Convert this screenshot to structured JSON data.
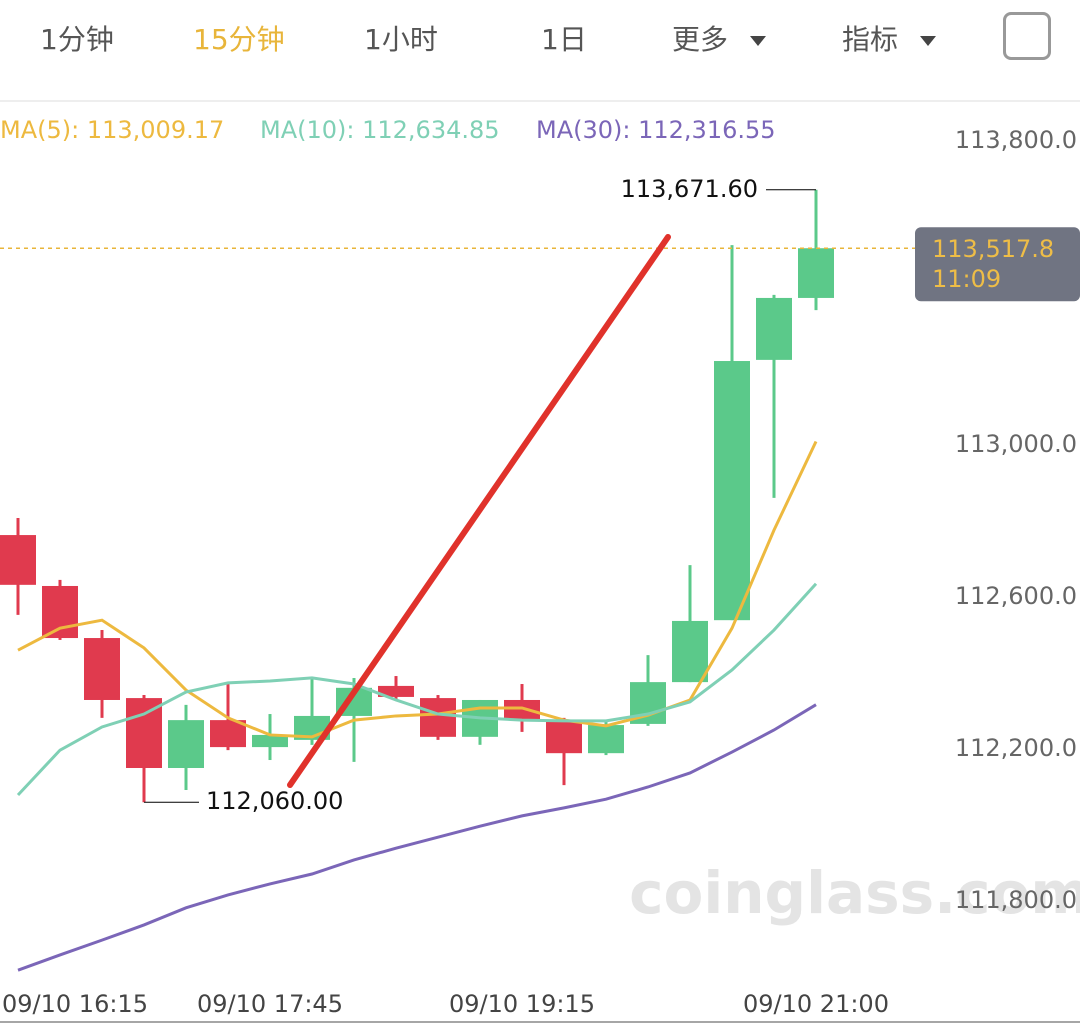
{
  "tabs": [
    "1分钟",
    "15分钟",
    "1小时",
    "1日",
    "更多",
    "指标"
  ],
  "chart_data": {
    "type": "candlestick",
    "categories": [
      "09/10 16:15",
      null,
      null,
      null,
      null,
      null,
      "09/10 17:45",
      null,
      null,
      null,
      null,
      null,
      "09/10 19:15",
      null,
      null,
      null,
      null,
      null,
      null,
      "09/10 21:00"
    ],
    "open": [
      112763,
      112629,
      112492,
      112334,
      112150,
      112276,
      112205,
      112224,
      112287,
      112366,
      112334,
      112232,
      112329,
      112276,
      112189,
      112266,
      112376,
      112539,
      113224,
      113387
    ],
    "high": [
      112808,
      112645,
      112513,
      112342,
      112316,
      112376,
      112292,
      112387,
      112387,
      112392,
      112342,
      112329,
      112371,
      112282,
      112271,
      112447,
      112684,
      113526,
      113395,
      113671.6
    ],
    "low": [
      112553,
      112487,
      112282,
      112060,
      112092,
      112197,
      112171,
      112211,
      112166,
      112329,
      112224,
      112211,
      112245,
      112105,
      112184,
      112261,
      112376,
      112539,
      112861,
      113355
    ],
    "close": [
      112632,
      112492,
      112329,
      112150,
      112276,
      112205,
      112237,
      112287,
      112361,
      112337,
      112232,
      112329,
      112276,
      112189,
      112263,
      112376,
      112537,
      113221,
      113387,
      113517.8
    ],
    "up_color": "#5bc98a",
    "down_color": "#e03a4e",
    "series": [
      {
        "name": "MA(5): 113,009.17",
        "color": "#edb93f",
        "values": [
          112460,
          112518,
          112539,
          112466,
          112355,
          112282,
          112237,
          112232,
          112276,
          112287,
          112292,
          112308,
          112308,
          112276,
          112261,
          112289,
          112329,
          112518,
          112776,
          113009.17
        ]
      },
      {
        "name": "MA(10): 112,634.85",
        "color": "#7fd0b5",
        "values": [
          112079,
          112197,
          112258,
          112292,
          112350,
          112374,
          112379,
          112387,
          112371,
          112329,
          112292,
          112282,
          112276,
          112274,
          112274,
          112292,
          112324,
          112408,
          112513,
          112634.85
        ]
      },
      {
        "name": "MA(30): 112,316.55",
        "color": "#7b66b8",
        "values": [
          111618,
          111658,
          111697,
          111737,
          111782,
          111816,
          111845,
          111871,
          111908,
          111939,
          111968,
          111997,
          112024,
          112045,
          112068,
          112100,
          112137,
          112192,
          112250,
          112316.55
        ]
      }
    ],
    "ylim": [
      111600,
      113900
    ],
    "yticks": [
      {
        "value": 113800,
        "label": "113,800.0"
      },
      {
        "value": 113000,
        "label": "113,000.0"
      },
      {
        "value": 112600,
        "label": "112,600.0"
      },
      {
        "value": 112200,
        "label": "112,200.0"
      },
      {
        "value": 111800,
        "label": "111,800.0"
      }
    ],
    "high_label": "113,671.60",
    "low_label": "112,060.00",
    "last_price_label": "113,517.8",
    "countdown": "11:09",
    "watermark": "coinglass.com"
  }
}
